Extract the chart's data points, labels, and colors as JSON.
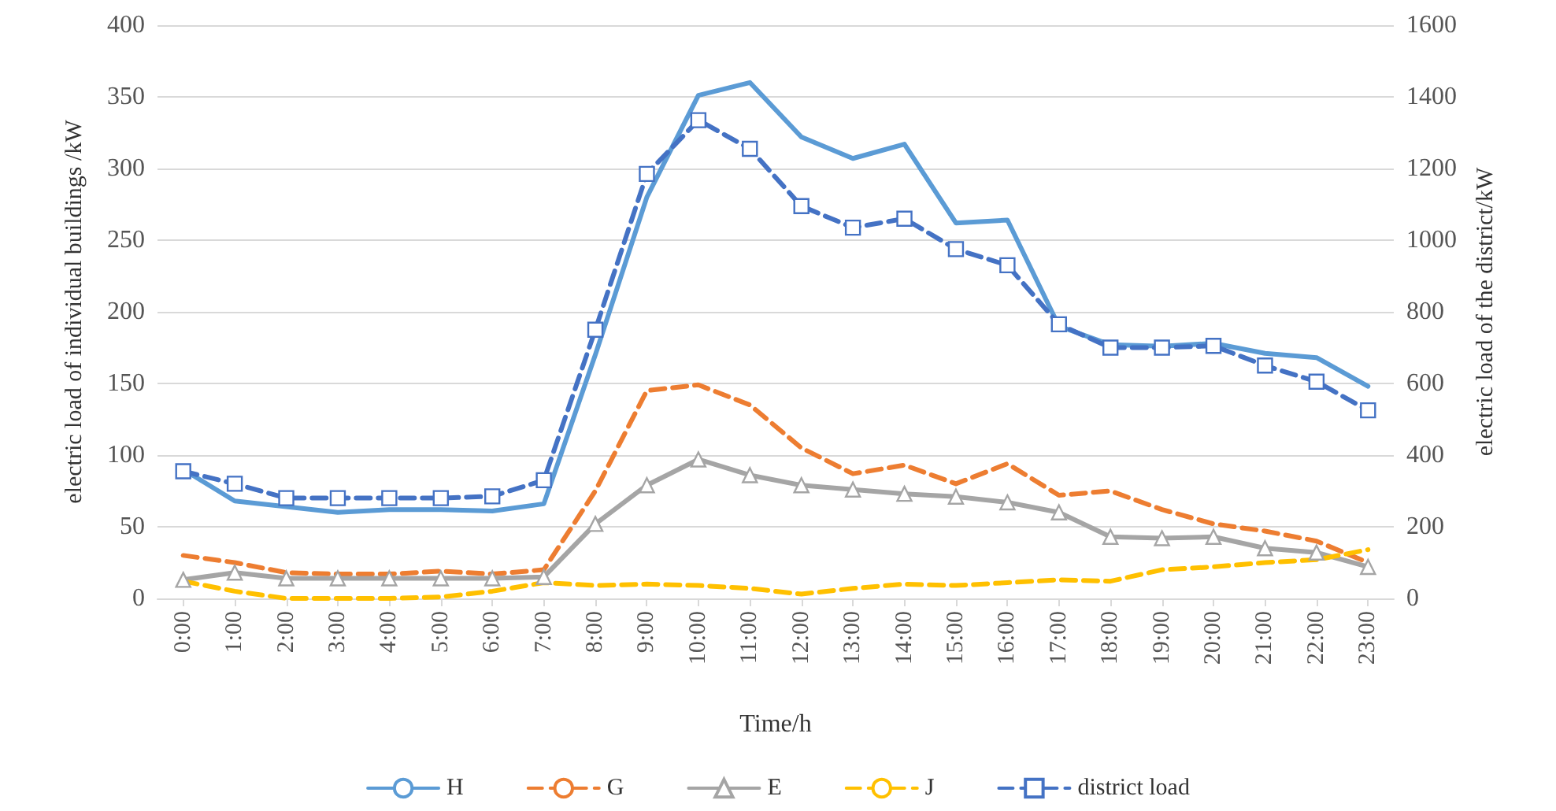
{
  "chart_data": {
    "type": "line",
    "xlabel": "Time/h",
    "ylabel": "electric load of individual buildings /kW",
    "y2label": "electric load of the district/kW",
    "categories": [
      "0:00",
      "1:00",
      "2:00",
      "3:00",
      "4:00",
      "5:00",
      "6:00",
      "7:00",
      "8:00",
      "9:00",
      "10:00",
      "11:00",
      "12:00",
      "13:00",
      "14:00",
      "15:00",
      "16:00",
      "17:00",
      "18:00",
      "19:00",
      "20:00",
      "21:00",
      "22:00",
      "23:00"
    ],
    "series": [
      {
        "name": "H",
        "color": "#5b9bd5",
        "line_style": "solid",
        "marker": "none",
        "values": [
          90,
          68,
          64,
          60,
          62,
          62,
          61,
          66,
          170,
          280,
          351,
          360,
          322,
          307,
          317,
          262,
          264,
          190,
          177,
          176,
          178,
          171,
          168,
          148
        ]
      },
      {
        "name": "G",
        "color": "#ed7d31",
        "line_style": "dashed",
        "marker": "none",
        "values": [
          30,
          25,
          18,
          17,
          17,
          19,
          17,
          20,
          75,
          145,
          149,
          135,
          105,
          87,
          93,
          80,
          94,
          72,
          75,
          62,
          52,
          47,
          40,
          25
        ]
      },
      {
        "name": "E",
        "color": "#a5a5a5",
        "line_style": "solid",
        "marker": "triangle",
        "values": [
          13,
          18,
          14,
          14,
          14,
          14,
          14,
          15,
          52,
          79,
          97,
          86,
          79,
          76,
          73,
          71,
          67,
          60,
          43,
          42,
          43,
          35,
          32,
          22
        ]
      },
      {
        "name": "J",
        "color": "#ffc000",
        "line_style": "dashed",
        "marker": "none",
        "values": [
          12,
          5,
          0,
          0,
          0,
          1,
          5,
          11,
          9,
          10,
          9,
          7,
          3,
          7,
          10,
          9,
          11,
          13,
          12,
          20,
          22,
          25,
          27,
          34
        ]
      },
      {
        "name": "district load",
        "color": "#4472c4",
        "line_style": "dashed",
        "marker": "square",
        "axis": "y2",
        "values": [
          355,
          320,
          280,
          280,
          280,
          280,
          285,
          330,
          750,
          1185,
          1335,
          1255,
          1095,
          1035,
          1060,
          975,
          930,
          765,
          700,
          700,
          705,
          650,
          605,
          525
        ]
      }
    ],
    "ylim": [
      0,
      400
    ],
    "yticks": [
      0,
      50,
      100,
      150,
      200,
      250,
      300,
      350,
      400
    ],
    "y2lim": [
      0,
      1600
    ],
    "y2ticks": [
      0,
      200,
      400,
      600,
      800,
      1000,
      1200,
      1400,
      1600
    ],
    "grid": "y",
    "legend": "bottom"
  }
}
